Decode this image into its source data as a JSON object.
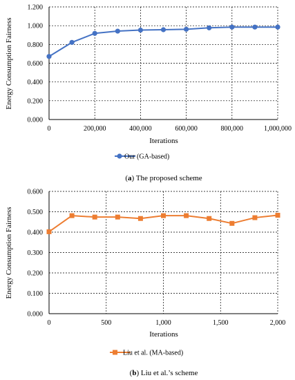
{
  "charts": [
    {
      "type": "line",
      "ylabel": "Energy Consumption Fairness",
      "xlabel": "Iterations",
      "ylim": [
        0,
        1.2
      ],
      "yticks": [
        "0.000",
        "0.200",
        "0.400",
        "0.600",
        "0.800",
        "1.000",
        "1.200"
      ],
      "xlim": [
        0,
        1000000
      ],
      "xticks": [
        "0",
        "200,000",
        "400,000",
        "600,000",
        "800,000",
        "1,000,000"
      ],
      "grid": "dashed",
      "legend_position": "bottom",
      "color": "#4472C4",
      "marker": "circle",
      "series": [
        {
          "name": "Our (GA-based)",
          "x": [
            0,
            100000,
            200000,
            300000,
            400000,
            500000,
            600000,
            700000,
            800000,
            900000,
            1000000
          ],
          "y": [
            0.672,
            0.822,
            0.918,
            0.942,
            0.953,
            0.957,
            0.962,
            0.977,
            0.985,
            0.985,
            0.985
          ]
        }
      ],
      "caption_bold": "a",
      "caption_rest": " The proposed scheme"
    },
    {
      "type": "line",
      "ylabel": "Energy Consumption Fairness",
      "xlabel": "Iterations",
      "ylim": [
        0,
        0.6
      ],
      "yticks": [
        "0.000",
        "0.100",
        "0.200",
        "0.300",
        "0.400",
        "0.500",
        "0.600"
      ],
      "xlim": [
        0,
        2000
      ],
      "xticks": [
        "0",
        "500",
        "1,000",
        "1,500",
        "2,000"
      ],
      "grid": "dashed",
      "legend_position": "bottom",
      "color": "#ED7D31",
      "marker": "square",
      "series": [
        {
          "name": "Liu et al. (MA-based)",
          "x": [
            0,
            200,
            400,
            600,
            800,
            1000,
            1200,
            1400,
            1600,
            1800,
            2000
          ],
          "y": [
            0.402,
            0.481,
            0.474,
            0.474,
            0.467,
            0.481,
            0.481,
            0.467,
            0.443,
            0.471,
            0.483
          ]
        }
      ],
      "caption_bold": "b",
      "caption_rest": " Liu et al.’s scheme"
    }
  ]
}
